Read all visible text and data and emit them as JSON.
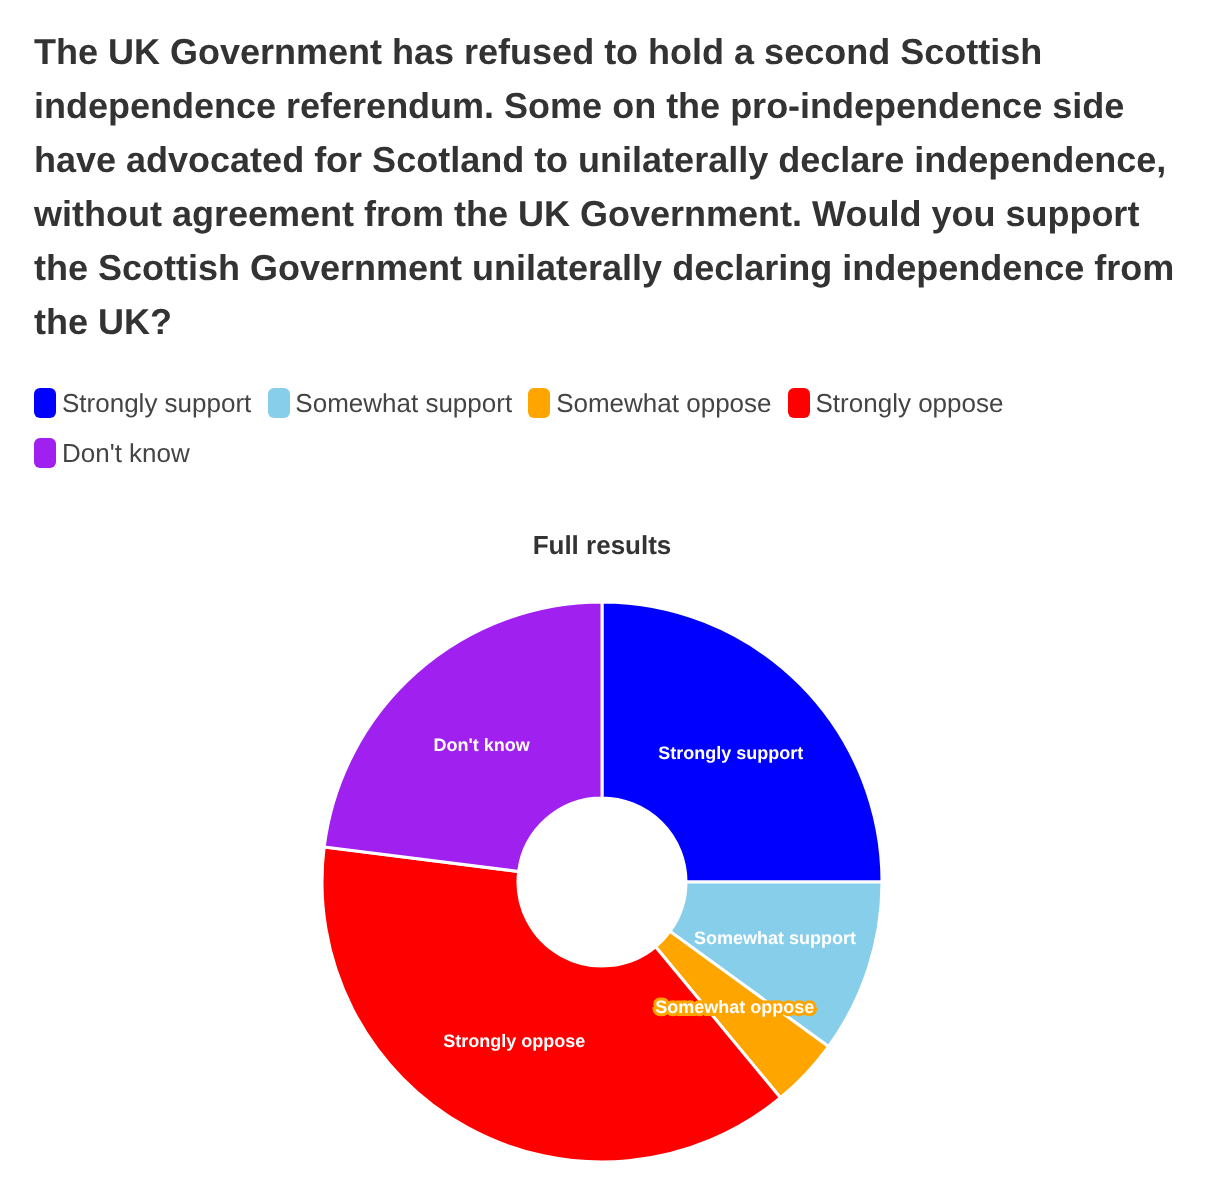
{
  "chart_data": {
    "type": "donut",
    "title": "The UK Government has refused to hold a second Scottish independence referendum. Some on the pro-independence side have advocated for Scotland to unilaterally declare independence, without agreement from the UK Government. Would you support the Scottish Government unilaterally declaring independence from the UK?",
    "subtitle": "Full results",
    "categories": [
      "Strongly support",
      "Somewhat support",
      "Somewhat oppose",
      "Strongly oppose",
      "Don't know"
    ],
    "values": [
      25,
      10,
      4,
      38,
      23
    ],
    "colors": [
      "#0000ff",
      "#87ceeb",
      "#ffa500",
      "#ff0000",
      "#a020f0"
    ],
    "legend": "top left"
  }
}
